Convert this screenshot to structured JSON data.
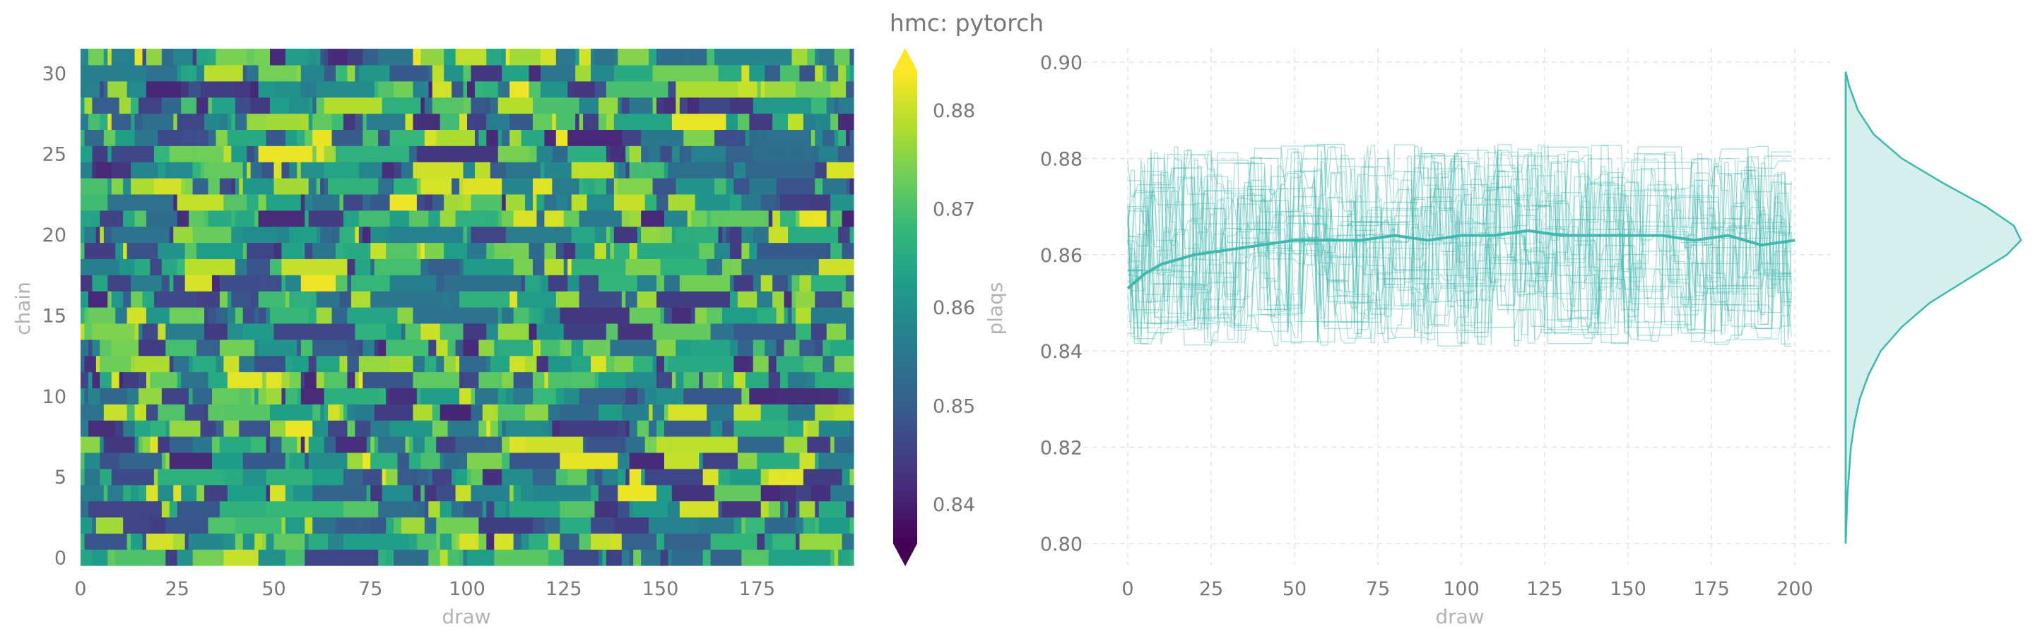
{
  "figure": {
    "title": "hmc: pytorch"
  },
  "chart_data": [
    {
      "type": "heatmap",
      "xlabel": "draw",
      "ylabel": "chain",
      "xlim": [
        0,
        200
      ],
      "ylim": [
        0,
        32
      ],
      "xticks": [
        "0",
        "25",
        "50",
        "75",
        "100",
        "125",
        "150",
        "175"
      ],
      "yticks": [
        "0",
        "5",
        "10",
        "15",
        "20",
        "25",
        "30"
      ],
      "n_chains": 32,
      "n_draws": 200,
      "colormap": "viridis",
      "colorbar": {
        "label": "plaqs",
        "range": [
          0.836,
          0.884
        ],
        "ticks": [
          "0.84",
          "0.85",
          "0.86",
          "0.87",
          "0.88"
        ],
        "extend": "both"
      }
    },
    {
      "type": "line",
      "xlabel": "draw",
      "ylabel": "",
      "xlim": [
        0,
        200
      ],
      "ylim": [
        0.8,
        0.9
      ],
      "xticks": [
        "0",
        "25",
        "50",
        "75",
        "100",
        "125",
        "150",
        "175",
        "200"
      ],
      "yticks": [
        "0.80",
        "0.82",
        "0.84",
        "0.86",
        "0.88",
        "0.90"
      ],
      "grid": true,
      "series_color": "#3fb8ad",
      "n_chain_traces": 32,
      "mean_trace": {
        "x": [
          0,
          5,
          10,
          20,
          30,
          40,
          50,
          60,
          70,
          80,
          90,
          100,
          110,
          120,
          130,
          140,
          150,
          160,
          170,
          180,
          190,
          200
        ],
        "y": [
          0.853,
          0.856,
          0.858,
          0.86,
          0.861,
          0.862,
          0.863,
          0.863,
          0.863,
          0.864,
          0.863,
          0.864,
          0.864,
          0.865,
          0.864,
          0.864,
          0.864,
          0.864,
          0.863,
          0.864,
          0.862,
          0.863
        ]
      },
      "distribution": {
        "type": "kde",
        "y": [
          0.8,
          0.81,
          0.82,
          0.825,
          0.83,
          0.835,
          0.84,
          0.845,
          0.85,
          0.855,
          0.86,
          0.863,
          0.866,
          0.87,
          0.875,
          0.88,
          0.885,
          0.89,
          0.895,
          0.898
        ],
        "density": [
          0.0,
          0.01,
          0.03,
          0.05,
          0.08,
          0.13,
          0.2,
          0.32,
          0.48,
          0.7,
          0.92,
          1.0,
          0.96,
          0.8,
          0.55,
          0.32,
          0.16,
          0.07,
          0.02,
          0.0
        ]
      }
    }
  ]
}
